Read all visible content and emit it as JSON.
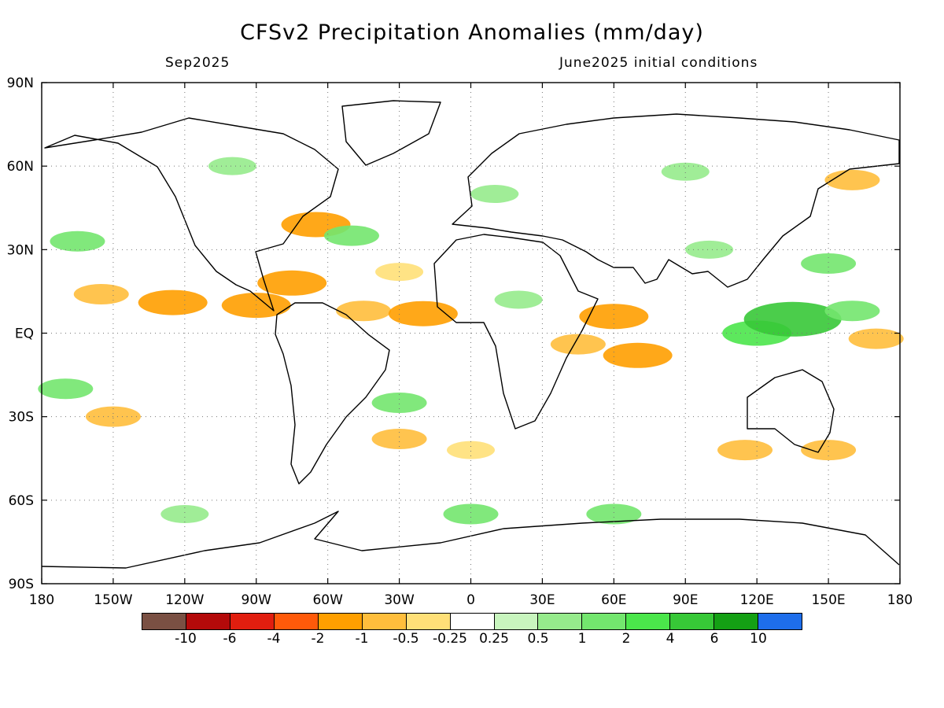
{
  "title": "CFSv2 Precipitation Anomalies (mm/day)",
  "subtitle_left": "Sep2025",
  "subtitle_right": "June2025 initial conditions",
  "map": {
    "lon_range": [
      -180,
      180
    ],
    "lat_range": [
      -90,
      90
    ],
    "projection": "equirectangular",
    "grid": "dotted",
    "lon_ticks": [
      {
        "lon": -180,
        "label": "180"
      },
      {
        "lon": -150,
        "label": "150W"
      },
      {
        "lon": -120,
        "label": "120W"
      },
      {
        "lon": -90,
        "label": "90W"
      },
      {
        "lon": -60,
        "label": "60W"
      },
      {
        "lon": -30,
        "label": "30W"
      },
      {
        "lon": 0,
        "label": "0"
      },
      {
        "lon": 30,
        "label": "30E"
      },
      {
        "lon": 60,
        "label": "60E"
      },
      {
        "lon": 90,
        "label": "90E"
      },
      {
        "lon": 120,
        "label": "120E"
      },
      {
        "lon": 150,
        "label": "150E"
      },
      {
        "lon": 180,
        "label": "180"
      }
    ],
    "lat_ticks": [
      {
        "lat": 90,
        "label": "90N"
      },
      {
        "lat": 60,
        "label": "60N"
      },
      {
        "lat": 30,
        "label": "30N"
      },
      {
        "lat": 0,
        "label": "EQ"
      },
      {
        "lat": -30,
        "label": "30S"
      },
      {
        "lat": -60,
        "label": "60S"
      },
      {
        "lat": -90,
        "label": "90S"
      }
    ]
  },
  "colorbar": {
    "colors": [
      "#7a5043",
      "#b40a0a",
      "#e11e0f",
      "#ff5a0a",
      "#ff9f00",
      "#ffbe3c",
      "#ffe078",
      "#ffffff",
      "#c8f5be",
      "#96eb8c",
      "#73e66e",
      "#4be64b",
      "#37c837",
      "#14a014",
      "#1e6eeb"
    ],
    "labels": [
      "-10",
      "-6",
      "-4",
      "-2",
      "-1",
      "-0.5",
      "-0.25",
      "0.25",
      "0.5",
      "1",
      "2",
      "4",
      "6",
      "10"
    ]
  },
  "anomalies": [
    {
      "lon": -125,
      "lat": 11,
      "value": -2
    },
    {
      "lon": -90,
      "lat": 10,
      "value": -2
    },
    {
      "lon": -155,
      "lat": 14,
      "value": -1
    },
    {
      "lon": -45,
      "lat": 8,
      "value": -1
    },
    {
      "lon": -20,
      "lat": 7,
      "value": -2
    },
    {
      "lon": -75,
      "lat": 18,
      "value": -2
    },
    {
      "lon": -65,
      "lat": 39,
      "value": -2
    },
    {
      "lon": -30,
      "lat": 22,
      "value": -0.5
    },
    {
      "lon": 60,
      "lat": 6,
      "value": -2
    },
    {
      "lon": 70,
      "lat": -8,
      "value": -2
    },
    {
      "lon": 45,
      "lat": -4,
      "value": -1
    },
    {
      "lon": 170,
      "lat": -2,
      "value": -1
    },
    {
      "lon": 160,
      "lat": 55,
      "value": -1
    },
    {
      "lon": 115,
      "lat": -42,
      "value": -1
    },
    {
      "lon": 150,
      "lat": -42,
      "value": -1
    },
    {
      "lon": -150,
      "lat": -30,
      "value": -1
    },
    {
      "lon": -30,
      "lat": -38,
      "value": -1
    },
    {
      "lon": 0,
      "lat": -42,
      "value": -0.5
    },
    {
      "lon": 120,
      "lat": 0,
      "value": 2
    },
    {
      "lon": 135,
      "lat": 5,
      "value": 4
    },
    {
      "lon": 150,
      "lat": 25,
      "value": 1
    },
    {
      "lon": 160,
      "lat": 8,
      "value": 1
    },
    {
      "lon": -50,
      "lat": 35,
      "value": 1
    },
    {
      "lon": -165,
      "lat": 33,
      "value": 1
    },
    {
      "lon": -170,
      "lat": -20,
      "value": 1
    },
    {
      "lon": 20,
      "lat": 12,
      "value": 0.5
    },
    {
      "lon": 10,
      "lat": 50,
      "value": 0.5
    },
    {
      "lon": 90,
      "lat": 58,
      "value": 0.5
    },
    {
      "lon": -100,
      "lat": 60,
      "value": 0.5
    },
    {
      "lon": 0,
      "lat": -65,
      "value": 1
    },
    {
      "lon": 60,
      "lat": -65,
      "value": 1
    },
    {
      "lon": -120,
      "lat": -65,
      "value": 0.5
    },
    {
      "lon": -30,
      "lat": -25,
      "value": 1
    },
    {
      "lon": 100,
      "lat": 30,
      "value": 0.5
    }
  ]
}
